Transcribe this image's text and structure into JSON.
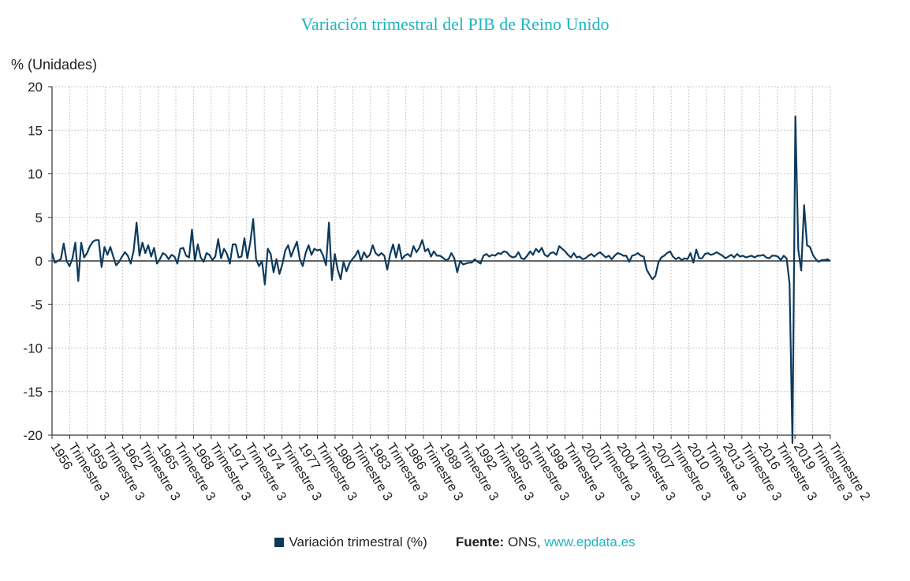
{
  "chart_data": {
    "type": "line",
    "title": "Variación trimestral del PIB de Reino Unido",
    "ylabel": "% (Unidades)",
    "xlabel": "",
    "ylim": [
      -20,
      20
    ],
    "yticks": [
      20,
      15,
      10,
      5,
      0,
      -5,
      -10,
      -15,
      -20
    ],
    "grid": true,
    "line_color": "#0d3a5c",
    "title_color": "#1fb5c3",
    "x_tick_labels": [
      "1956",
      "Trimestre 3",
      "1959",
      "Trimestre 3",
      "1962",
      "Trimestre 3",
      "1965",
      "Trimestre 3",
      "1968",
      "Trimestre 3",
      "1971",
      "Trimestre 3",
      "1974",
      "Trimestre 3",
      "1977",
      "Trimestre 3",
      "1980",
      "Trimestre 3",
      "1983",
      "Trimestre 3",
      "1986",
      "Trimestre 3",
      "1989",
      "Trimestre 3",
      "1992",
      "Trimestre 3",
      "1995",
      "Trimestre 3",
      "1998",
      "Trimestre 3",
      "2001",
      "Trimestre 3",
      "2004",
      "Trimestre 3",
      "2007",
      "Trimestre 3",
      "2010",
      "Trimestre 3",
      "2013",
      "Trimestre 3",
      "2016",
      "Trimestre 3",
      "2019",
      "Trimestre 3",
      "Trimestre 2"
    ],
    "series": [
      {
        "name": "Variación trimestral (%)",
        "values": [
          0.9,
          -0.2,
          0.0,
          0.2,
          2.0,
          0.0,
          -0.6,
          0.3,
          2.1,
          -2.3,
          2.1,
          0.4,
          0.9,
          1.7,
          2.2,
          2.4,
          2.4,
          -0.7,
          1.6,
          0.7,
          1.6,
          0.5,
          -0.5,
          -0.1,
          0.5,
          1.0,
          0.6,
          -0.3,
          1.2,
          4.4,
          0.6,
          2.1,
          0.9,
          1.8,
          0.5,
          1.5,
          -0.3,
          0.2,
          0.9,
          0.7,
          0.2,
          0.7,
          0.5,
          -0.3,
          1.4,
          1.5,
          0.6,
          0.4,
          3.6,
          0.0,
          1.9,
          0.4,
          -0.1,
          0.9,
          0.7,
          0.1,
          0.5,
          2.5,
          0.3,
          1.4,
          0.8,
          -0.3,
          1.9,
          1.9,
          0.4,
          0.5,
          2.6,
          0.3,
          2.1,
          4.8,
          0.2,
          -0.6,
          0.0,
          -2.7,
          1.4,
          0.8,
          -1.3,
          0.2,
          -1.5,
          -0.4,
          1.2,
          1.8,
          0.5,
          1.4,
          2.2,
          0.2,
          -0.6,
          0.9,
          1.8,
          0.7,
          1.4,
          1.2,
          1.3,
          0.6,
          -0.5,
          4.4,
          -2.2,
          0.8,
          -1.0,
          -2.1,
          -0.1,
          -1.2,
          -0.3,
          0.2,
          0.6,
          1.2,
          0.0,
          1.0,
          0.4,
          0.7,
          1.8,
          0.9,
          0.6,
          0.9,
          0.6,
          -1.0,
          0.8,
          1.9,
          0.4,
          1.9,
          0.2,
          0.6,
          0.8,
          0.5,
          1.7,
          1.0,
          1.5,
          2.4,
          1.1,
          1.4,
          0.5,
          1.1,
          0.6,
          0.6,
          0.4,
          0.1,
          0.2,
          0.9,
          0.3,
          -1.3,
          0.0,
          -0.4,
          -0.3,
          -0.2,
          -0.2,
          0.2,
          -0.1,
          -0.3,
          0.6,
          0.8,
          0.5,
          0.7,
          0.6,
          0.9,
          0.8,
          1.1,
          1.0,
          0.6,
          0.4,
          0.5,
          1.0,
          0.3,
          0.2,
          0.6,
          1.1,
          0.7,
          1.4,
          1.0,
          1.5,
          0.7,
          0.5,
          0.9,
          1.0,
          0.7,
          1.7,
          1.4,
          1.1,
          0.7,
          0.4,
          0.9,
          0.4,
          0.5,
          0.2,
          0.3,
          0.6,
          0.8,
          0.5,
          0.8,
          1.0,
          0.7,
          0.4,
          0.6,
          0.2,
          0.6,
          0.9,
          0.8,
          0.6,
          0.6,
          -0.1,
          0.6,
          0.7,
          0.9,
          0.6,
          0.5,
          -1.0,
          -1.6,
          -2.1,
          -1.7,
          -0.2,
          0.4,
          0.6,
          0.9,
          1.1,
          0.5,
          0.2,
          0.4,
          0.1,
          0.3,
          0.2,
          0.9,
          -0.2,
          1.3,
          0.3,
          0.3,
          0.8,
          0.9,
          0.7,
          0.8,
          1.0,
          0.8,
          0.6,
          0.3,
          0.5,
          0.7,
          0.4,
          0.8,
          0.5,
          0.6,
          0.4,
          0.5,
          0.6,
          0.4,
          0.6,
          0.6,
          0.7,
          0.4,
          0.3,
          0.6,
          0.6,
          0.5,
          0.1,
          0.6,
          0.3,
          -2.6,
          -20.9,
          16.6,
          1.3,
          -1.1,
          6.4,
          1.8,
          1.6,
          0.7,
          0.2,
          -0.1,
          0.1,
          0.1,
          0.2,
          0.0
        ]
      }
    ]
  },
  "legend": {
    "label": "Variación trimestral (%)"
  },
  "source": {
    "label": "Fuente:",
    "name": "ONS,",
    "link": "www.epdata.es"
  }
}
